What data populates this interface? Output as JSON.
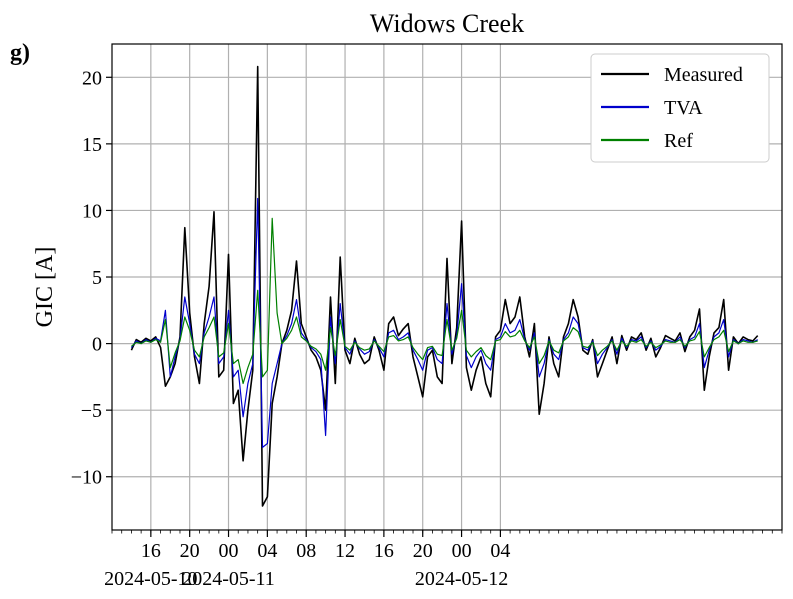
{
  "panel_label": "g)",
  "chart_data": {
    "type": "line",
    "title": "Widows Creek",
    "xlabel": "",
    "ylabel": "GIC [A]",
    "x_unit": "time",
    "xlim": [
      "2024-05-10T12:00",
      "2024-05-13T09:00"
    ],
    "ylim": [
      -14,
      22.5
    ],
    "grid": true,
    "legend_position": "top-right",
    "y_ticks": [
      -10,
      -5,
      0,
      5,
      10,
      15,
      20
    ],
    "y_tick_labels": [
      "−10",
      "−5",
      "0",
      "5",
      "10",
      "15",
      "20"
    ],
    "x_ticks": [
      "2024-05-10T16:00",
      "2024-05-10T20:00",
      "2024-05-11T00:00",
      "2024-05-11T04:00",
      "2024-05-11T08:00",
      "2024-05-11T12:00",
      "2024-05-11T16:00",
      "2024-05-11T20:00",
      "2024-05-12T00:00",
      "2024-05-12T04:00"
    ],
    "x_tick_labels": [
      "16",
      "20",
      "00",
      "04",
      "08",
      "12",
      "16",
      "20",
      "00",
      "04"
    ],
    "date_labels": [
      {
        "x": "2024-05-10T16:00",
        "text": "2024-05-10"
      },
      {
        "x": "2024-05-11T00:00",
        "text": "2024-05-11"
      },
      {
        "x": "2024-05-12T00:00",
        "text": "2024-05-12"
      }
    ],
    "x_start": "2024-05-10T14:00",
    "step_minutes": 30,
    "series": [
      {
        "name": "Measured",
        "color": "#000000",
        "values": [
          -0.5,
          0.3,
          0.1,
          0.4,
          0.2,
          0.5,
          -0.3,
          -3.2,
          -2.5,
          -1.5,
          0.5,
          8.7,
          2.3,
          -1.0,
          -3.0,
          1.5,
          4.3,
          9.9,
          -2.5,
          -2.0,
          6.7,
          -4.5,
          -3.5,
          -8.8,
          -5.0,
          -2.0,
          20.8,
          -12.2,
          -11.5,
          -4.5,
          -2.5,
          0.0,
          1.0,
          2.5,
          6.2,
          1.5,
          0.5,
          -0.5,
          -1.0,
          -2.0,
          -5.0,
          3.5,
          -3.0,
          6.5,
          -0.5,
          -1.5,
          0.4,
          -0.8,
          -1.5,
          -1.2,
          0.5,
          -0.5,
          -2.0,
          1.5,
          2.0,
          0.6,
          1.1,
          1.5,
          -1.0,
          -2.5,
          -4.0,
          -1.0,
          -0.5,
          -2.5,
          -3.0,
          6.4,
          -1.5,
          1.2,
          9.2,
          -1.8,
          -3.5,
          -2.0,
          -1.0,
          -3.0,
          -4.0,
          0.5,
          1.0,
          3.3,
          1.5,
          2.0,
          3.5,
          0.5,
          -1.0,
          1.5,
          -5.3,
          -3.0,
          0.5,
          -1.5,
          -2.5,
          0.5,
          1.5,
          3.3,
          2.0,
          -0.5,
          -0.8,
          0.3,
          -2.5,
          -1.5,
          -0.5,
          0.5,
          -1.5,
          0.6,
          -0.5,
          0.5,
          0.3,
          0.8,
          -0.5,
          0.4,
          -1.0,
          -0.3,
          0.6,
          0.4,
          0.2,
          0.8,
          -0.6,
          0.5,
          1.0,
          2.6,
          -3.5,
          -1.0,
          0.8,
          1.2,
          3.3,
          -2.0,
          0.5,
          0.0,
          0.5,
          0.3,
          0.2,
          0.6
        ]
      },
      {
        "name": "TVA",
        "color": "#0000cc",
        "values": [
          -0.3,
          0.2,
          0.0,
          0.3,
          0.1,
          0.4,
          0.2,
          2.5,
          -2.5,
          -1.0,
          0.3,
          3.5,
          1.5,
          -0.8,
          -1.5,
          0.8,
          2.0,
          3.5,
          -1.5,
          -1.0,
          2.5,
          -2.5,
          -2.0,
          -5.5,
          -3.0,
          -1.5,
          10.9,
          -7.8,
          -7.5,
          -3.0,
          -1.5,
          0.0,
          0.6,
          1.5,
          3.3,
          0.8,
          0.3,
          -0.3,
          -0.6,
          -1.2,
          -6.9,
          2.0,
          -1.5,
          3.0,
          -0.3,
          -0.8,
          0.2,
          -0.4,
          -0.8,
          -0.6,
          0.3,
          -0.3,
          -1.0,
          0.8,
          1.0,
          0.3,
          0.5,
          0.8,
          -0.5,
          -1.2,
          -2.0,
          -0.5,
          -0.3,
          -1.2,
          -1.5,
          3.0,
          -0.8,
          0.6,
          4.5,
          -0.9,
          -1.8,
          -1.0,
          -0.5,
          -1.5,
          -2.0,
          0.3,
          0.5,
          1.5,
          0.8,
          1.0,
          1.8,
          0.3,
          -0.5,
          0.8,
          -2.5,
          -1.5,
          0.3,
          -0.8,
          -1.2,
          0.3,
          0.8,
          2.0,
          1.5,
          -0.3,
          -0.5,
          0.2,
          -1.5,
          -0.8,
          -0.3,
          0.3,
          -0.8,
          0.4,
          -0.3,
          0.3,
          0.2,
          0.5,
          -0.3,
          0.2,
          -0.5,
          -0.2,
          0.3,
          0.2,
          0.1,
          0.5,
          -0.3,
          0.3,
          0.5,
          1.5,
          -1.8,
          -0.5,
          0.5,
          0.8,
          1.8,
          -1.0,
          0.3,
          0.0,
          0.3,
          0.2,
          0.1,
          0.3
        ]
      },
      {
        "name": "Ref",
        "color": "#008000",
        "values": [
          -0.2,
          0.1,
          0.0,
          0.2,
          0.1,
          0.3,
          0.1,
          1.8,
          -1.8,
          -0.7,
          0.2,
          2.0,
          1.0,
          -0.5,
          -1.0,
          0.5,
          1.2,
          2.0,
          -1.0,
          -0.7,
          1.5,
          -1.5,
          -1.2,
          -3.0,
          -1.8,
          -0.8,
          4.0,
          -2.5,
          -2.0,
          9.4,
          2.3,
          0.0,
          0.4,
          1.0,
          2.0,
          0.5,
          0.2,
          -0.2,
          -0.4,
          -0.8,
          -2.0,
          1.2,
          -0.9,
          1.8,
          -0.2,
          -0.5,
          0.1,
          -0.3,
          -0.5,
          -0.4,
          0.2,
          -0.2,
          -0.6,
          0.5,
          0.6,
          0.2,
          0.3,
          0.5,
          -0.3,
          -0.8,
          -1.2,
          -0.3,
          -0.2,
          -0.8,
          -0.9,
          1.8,
          -0.5,
          0.4,
          2.5,
          -0.5,
          -1.0,
          -0.6,
          -0.3,
          -0.9,
          -1.2,
          0.2,
          0.3,
          0.9,
          0.5,
          0.6,
          1.0,
          0.2,
          -0.3,
          0.5,
          -1.5,
          -0.9,
          0.2,
          -0.5,
          -0.7,
          0.2,
          0.5,
          1.2,
          0.9,
          -0.2,
          -0.3,
          0.1,
          -0.9,
          -0.5,
          -0.2,
          0.2,
          -0.5,
          0.2,
          -0.2,
          0.2,
          0.1,
          0.3,
          -0.2,
          0.1,
          -0.3,
          -0.1,
          0.2,
          0.1,
          0.1,
          0.3,
          -0.2,
          0.2,
          0.3,
          0.9,
          -1.0,
          -0.3,
          0.3,
          0.5,
          1.0,
          -0.6,
          0.2,
          0.0,
          0.2,
          0.1,
          0.1,
          0.2
        ]
      }
    ]
  }
}
